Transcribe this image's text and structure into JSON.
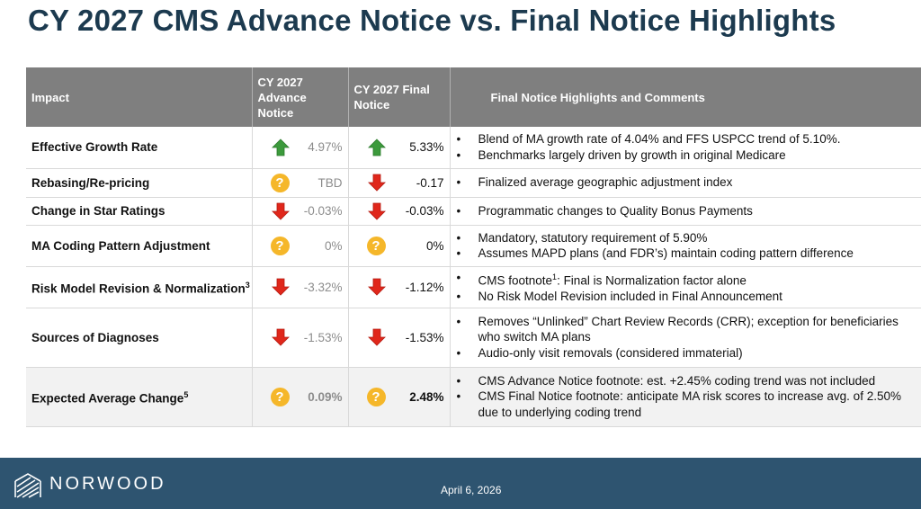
{
  "title": "CY 2027 CMS Advance Notice vs. Final Notice Highlights",
  "headers": {
    "impact": "Impact",
    "advance": "CY 2027 Advance Notice",
    "final": "CY 2027 Final Notice",
    "comments": "Final Notice Highlights and Comments"
  },
  "rows": [
    {
      "impact": "Effective Growth Rate",
      "advance": {
        "icon": "up-arrow-icon",
        "value": "4.97%"
      },
      "final": {
        "icon": "up-arrow-icon",
        "value": "5.33%"
      },
      "comments": [
        "Blend of MA growth rate of 4.04% and FFS USPCC trend of 5.10%.",
        "Benchmarks largely driven by growth in original Medicare"
      ]
    },
    {
      "impact": "Rebasing/Re-pricing",
      "advance": {
        "icon": "question-icon",
        "value": "TBD"
      },
      "final": {
        "icon": "down-arrow-icon",
        "value": "-0.17"
      },
      "comments": [
        "Finalized average geographic adjustment index"
      ]
    },
    {
      "impact": "Change in Star Ratings",
      "advance": {
        "icon": "down-arrow-icon",
        "value": "-0.03%"
      },
      "final": {
        "icon": "down-arrow-icon",
        "value": "-0.03%"
      },
      "comments": [
        "Programmatic changes to Quality Bonus Payments"
      ]
    },
    {
      "impact": "MA Coding Pattern Adjustment",
      "advance": {
        "icon": "question-icon",
        "value": "0%"
      },
      "final": {
        "icon": "question-icon",
        "value": "0%"
      },
      "comments": [
        "Mandatory, statutory requirement of 5.90%",
        "Assumes MAPD plans (and FDR’s) maintain coding pattern difference"
      ]
    },
    {
      "impact": "Risk Model Revision & Normalization",
      "impact_sup": "3",
      "advance": {
        "icon": "down-arrow-icon",
        "value": "-3.32%"
      },
      "final": {
        "icon": "down-arrow-icon",
        "value": "-1.12%"
      },
      "comments": [
        {
          "pre": "CMS footnote",
          "sup": "1",
          "post": ": Final is Normalization factor alone"
        },
        "No Risk Model Revision included in Final Announcement"
      ]
    },
    {
      "impact": "Sources of Diagnoses",
      "advance": {
        "icon": "down-arrow-icon",
        "value": "-1.53%"
      },
      "final": {
        "icon": "down-arrow-icon",
        "value": "-1.53%"
      },
      "comments": [
        "Removes “Unlinked” Chart Review Records (CRR); exception for beneficiaries who switch MA plans",
        "Audio-only visit removals (considered immaterial)"
      ]
    },
    {
      "impact": "Expected Average Change",
      "impact_sup": "5",
      "advance": {
        "icon": "question-icon",
        "value": "0.09%"
      },
      "final": {
        "icon": "question-icon",
        "value": "2.48%"
      },
      "comments": [
        "CMS Advance Notice footnote: est. +2.45% coding trend was not included",
        "CMS Final Notice footnote: anticipate MA risk scores to increase avg. of 2.50% due to underlying coding trend"
      ]
    }
  ],
  "footer": {
    "brand": "NORWOOD",
    "date": "April 6, 2026"
  },
  "colors": {
    "title": "#1c3a4f",
    "header_bg": "#7f7f7f",
    "up_arrow": "#3c9a3c",
    "down_arrow": "#e0271b",
    "question": "#f5b72a",
    "footer_bg": "#2e5470"
  }
}
